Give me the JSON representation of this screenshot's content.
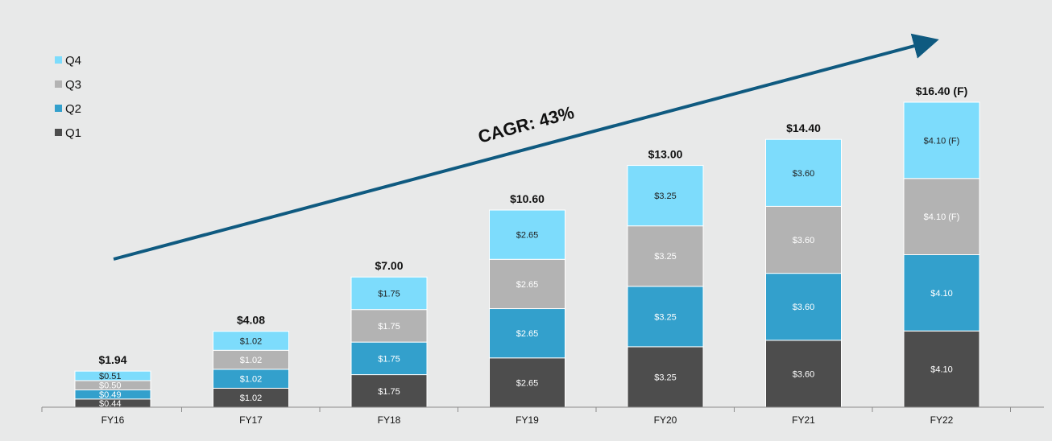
{
  "chart_data": {
    "type": "bar",
    "stacked": true,
    "categories": [
      "FY16",
      "FY17",
      "FY18",
      "FY19",
      "FY20",
      "FY21",
      "FY22"
    ],
    "series": [
      {
        "name": "Q1",
        "color": "#4d4d4d",
        "values": [
          0.44,
          1.02,
          1.75,
          2.65,
          3.25,
          3.6,
          4.1
        ],
        "labels": [
          "$0.44",
          "$1.02",
          "$1.75",
          "$2.65",
          "$3.25",
          "$3.60",
          "$4.10"
        ]
      },
      {
        "name": "Q2",
        "color": "#33a0cc",
        "values": [
          0.49,
          1.02,
          1.75,
          2.65,
          3.25,
          3.6,
          4.1
        ],
        "labels": [
          "$0.49",
          "$1.02",
          "$1.75",
          "$2.65",
          "$3.25",
          "$3.60",
          "$4.10"
        ]
      },
      {
        "name": "Q3",
        "color": "#b3b3b3",
        "values": [
          0.5,
          1.02,
          1.75,
          2.65,
          3.25,
          3.6,
          4.1
        ],
        "labels": [
          "$0.50",
          "$1.02",
          "$1.75",
          "$2.65",
          "$3.25",
          "$3.60",
          "$4.10 (F)"
        ]
      },
      {
        "name": "Q4",
        "color": "#7ddcfc",
        "values": [
          0.51,
          1.02,
          1.75,
          2.65,
          3.25,
          3.6,
          4.1
        ],
        "labels": [
          "$0.51",
          "$1.02",
          "$1.75",
          "$2.65",
          "$3.25",
          "$3.60",
          "$4.10 (F)"
        ]
      }
    ],
    "totals": [
      "$1.94",
      "$4.08",
      "$7.00",
      "$10.60",
      "$13.00",
      "$14.40",
      "$16.40 (F)"
    ],
    "annotation": {
      "text": "CAGR: 43%",
      "arrow_color": "#0f5a80"
    },
    "ylim": [
      0,
      16.4
    ],
    "grid": false,
    "legend": {
      "position": "top-left",
      "order": [
        "Q4",
        "Q3",
        "Q2",
        "Q1"
      ]
    },
    "title": "",
    "xlabel": "",
    "ylabel": ""
  }
}
